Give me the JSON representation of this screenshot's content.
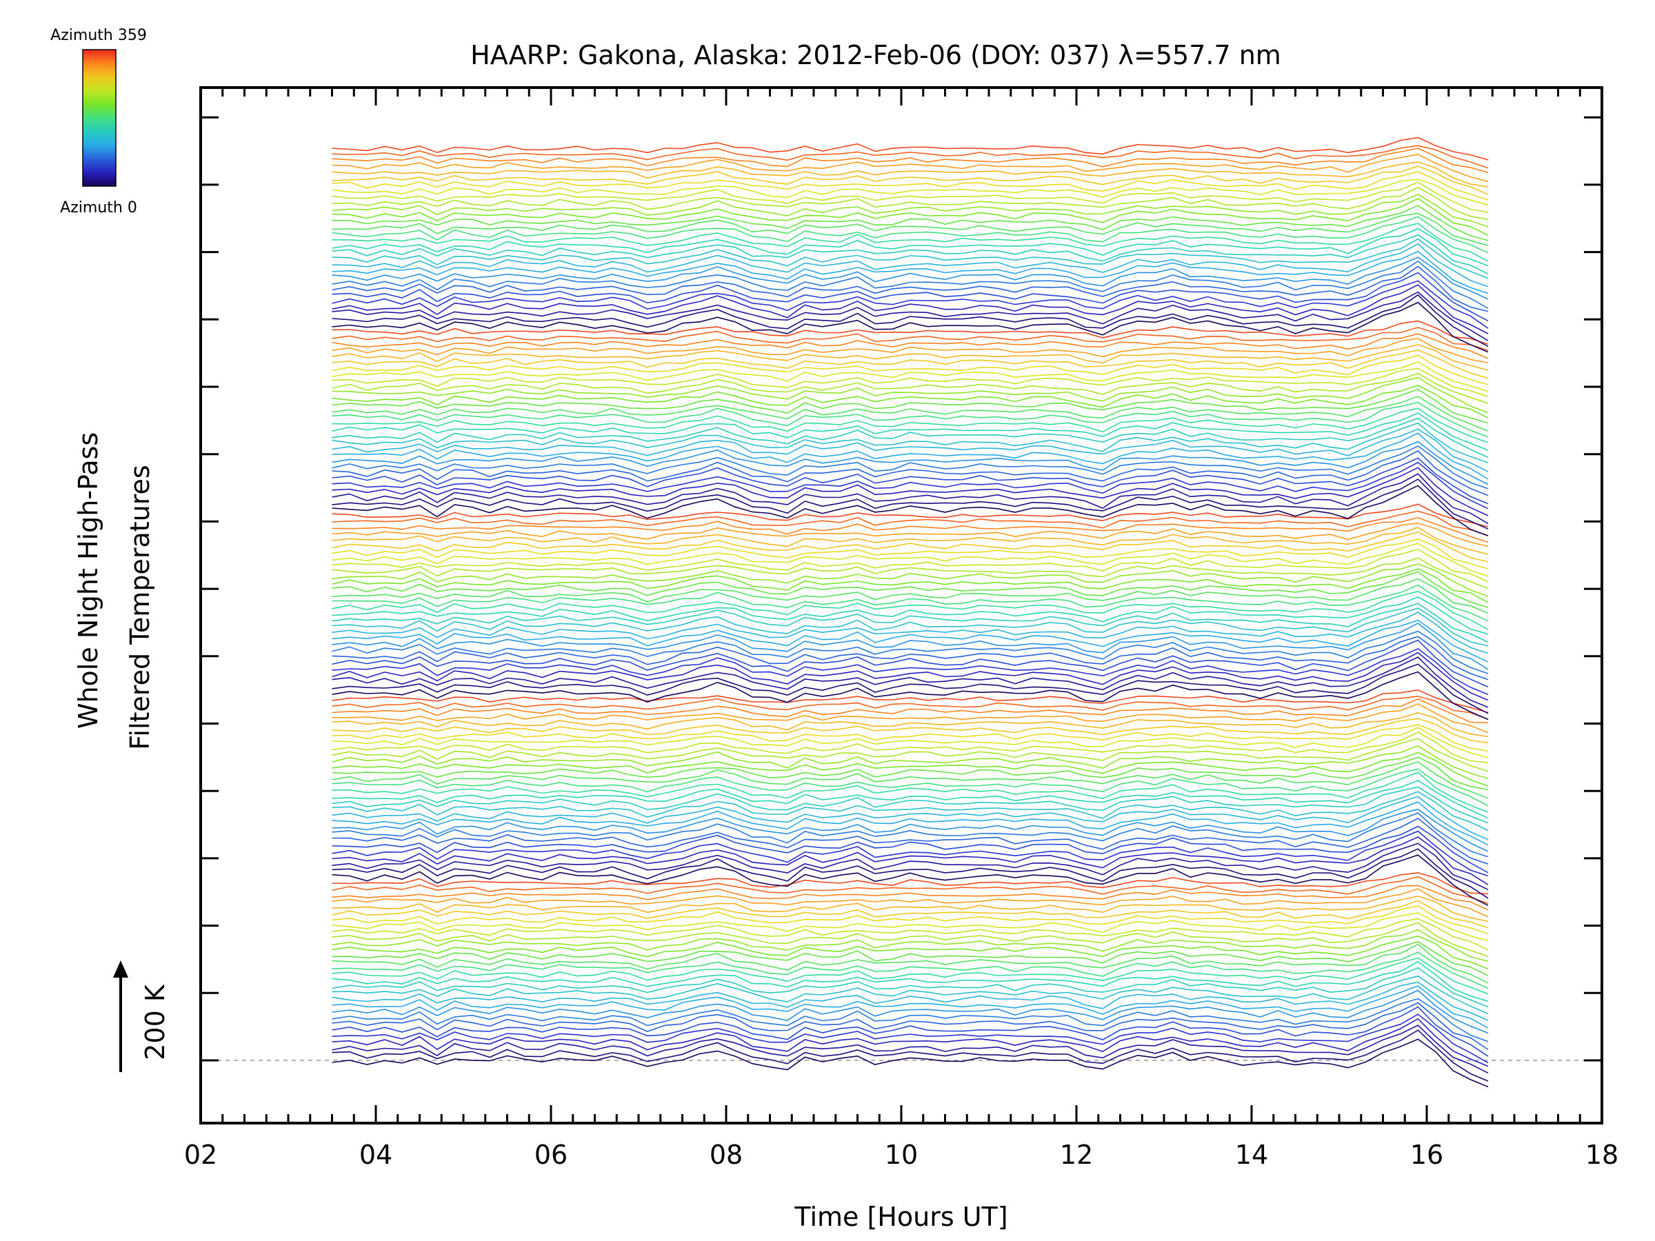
{
  "chart_data": {
    "type": "line",
    "title": "HAARP: Gakona,  Alaska: 2012-Feb-06 (DOY: 037) λ=557.7 nm",
    "xlabel": "Time [Hours UT]",
    "ylabel_line1": "Whole Night High-Pass",
    "ylabel_line2": "Filtered Temperatures",
    "xlim": [
      2,
      18
    ],
    "x_ticks": [
      "02",
      "04",
      "06",
      "08",
      "10",
      "12",
      "14",
      "16",
      "18"
    ],
    "scale_bar_label": "200 K",
    "colorbar": {
      "top_label": "Azimuth 359",
      "bottom_label": "Azimuth 0",
      "min": 0,
      "max": 359
    },
    "series_count": 150,
    "x": [
      3.5,
      3.7,
      3.9,
      4.1,
      4.3,
      4.5,
      4.7,
      4.9,
      5.1,
      5.3,
      5.5,
      5.7,
      5.9,
      6.1,
      6.3,
      6.5,
      6.7,
      6.9,
      7.1,
      7.3,
      7.5,
      7.7,
      7.9,
      8.1,
      8.3,
      8.5,
      8.7,
      8.9,
      9.1,
      9.3,
      9.5,
      9.7,
      9.9,
      10.1,
      10.3,
      10.5,
      10.7,
      10.9,
      11.1,
      11.3,
      11.5,
      11.7,
      11.9,
      12.1,
      12.3,
      12.5,
      12.7,
      12.9,
      13.1,
      13.3,
      13.5,
      13.7,
      13.9,
      14.1,
      14.3,
      14.5,
      14.7,
      14.9,
      15.1,
      15.3,
      15.5,
      15.7,
      15.9,
      16.1,
      16.3,
      16.5,
      16.7
    ],
    "base_profile_K": [
      0,
      2,
      -3,
      1,
      -2,
      6,
      -8,
      4,
      1,
      -3,
      5,
      0,
      -2,
      4,
      1,
      -1,
      3,
      -2,
      -10,
      -5,
      2,
      8,
      14,
      6,
      -4,
      -8,
      -12,
      2,
      -3,
      0,
      7,
      -5,
      -2,
      3,
      1,
      -2,
      0,
      2,
      1,
      -3,
      1,
      2,
      0,
      -8,
      -13,
      0,
      6,
      4,
      10,
      2,
      4,
      0,
      -4,
      -6,
      -2,
      -8,
      -4,
      -6,
      -10,
      0,
      12,
      20,
      32,
      10,
      -12,
      -25,
      -38
    ],
    "baseline_label": ""
  }
}
